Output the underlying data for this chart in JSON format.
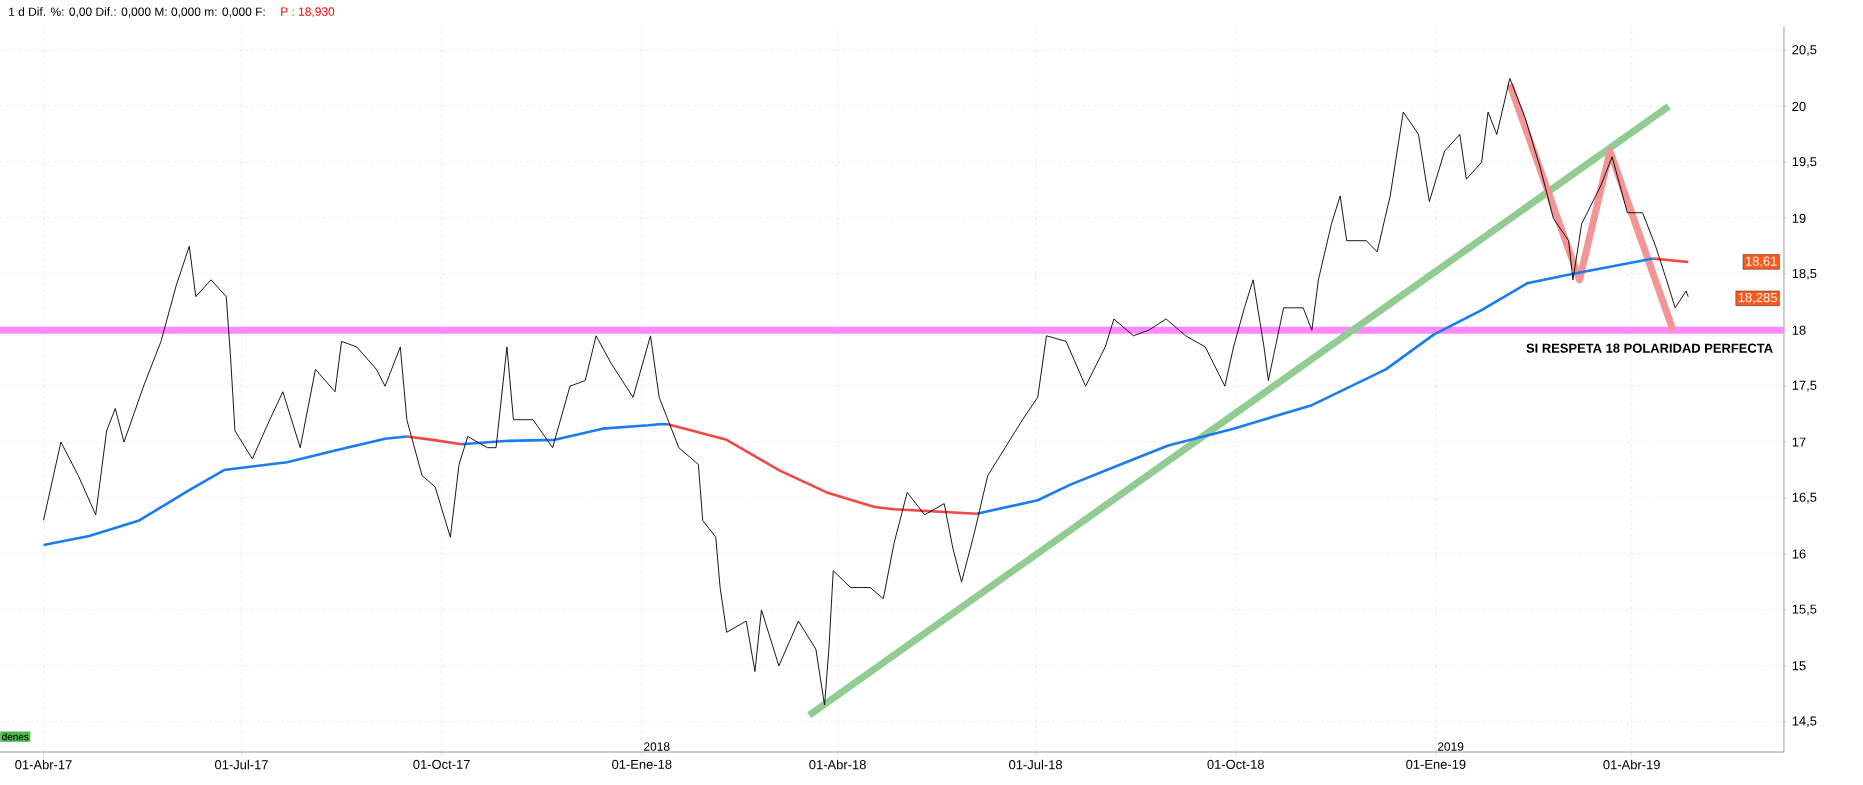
{
  "chart_data": {
    "type": "line",
    "title": "1 d Dif. %: 0,00 Dif.: 0,000 M: 0,000 m: 0,000 F:",
    "subtitle": "P : 18,930",
    "xlim": [
      "2017-03-12",
      "2019-06-10"
    ],
    "ylim": [
      14.23,
      20.71
    ],
    "xticks": [
      {
        "value": "2017-04-01",
        "label": "01-Abr-17"
      },
      {
        "value": "2017-07-01",
        "label": "01-Jul-17"
      },
      {
        "value": "2017-10-01",
        "label": "01-Oct-17"
      },
      {
        "value": "2018-01-01",
        "label": "01-Ene-18"
      },
      {
        "value": "2018-04-01",
        "label": "01-Abr-18"
      },
      {
        "value": "2018-07-01",
        "label": "01-Jul-18"
      },
      {
        "value": "2018-10-01",
        "label": "01-Oct-18"
      },
      {
        "value": "2019-01-01",
        "label": "01-Ene-19"
      },
      {
        "value": "2019-04-01",
        "label": "01-Abr-19"
      }
    ],
    "yticks": [
      {
        "value": 14.5,
        "label": "14,5"
      },
      {
        "value": 15,
        "label": "15"
      },
      {
        "value": 15.5,
        "label": "15,5"
      },
      {
        "value": 16,
        "label": "16"
      },
      {
        "value": 16.5,
        "label": "16,5"
      },
      {
        "value": 17,
        "label": "17"
      },
      {
        "value": 17.5,
        "label": "17,5"
      },
      {
        "value": 18,
        "label": "18"
      },
      {
        "value": 18.5,
        "label": "18,5"
      },
      {
        "value": 19,
        "label": "19"
      },
      {
        "value": 19.5,
        "label": "19,5"
      },
      {
        "value": 20,
        "label": "20"
      },
      {
        "value": 20.5,
        "label": "20,5"
      }
    ],
    "grid": true,
    "ref_lines": [
      {
        "axis": "y",
        "value": 18,
        "color": "#ff88ff"
      }
    ],
    "series": [
      {
        "color": "#93cc93",
        "x": [
          "2018-03-19",
          "2019-04-18"
        ],
        "values": [
          14.56,
          20.0
        ]
      },
      {
        "color": "#f49494",
        "x": [
          "2019-02-04",
          "2019-03-08",
          "2019-03-22",
          "2019-04-20"
        ],
        "values": [
          20.2,
          18.45,
          19.6,
          18.0
        ]
      },
      {
        "color": "#1a7cf0",
        "x": [
          "2017-04-01",
          "2017-04-22",
          "2017-05-15",
          "2017-06-07",
          "2017-06-23",
          "2017-07-05",
          "2017-07-22",
          "2017-08-14",
          "2017-09-05",
          "2017-09-15",
          "2017-09-27",
          "2017-10-10",
          "2017-10-30",
          "2017-11-22",
          "2017-12-14",
          "2018-01-04",
          "2018-01-09",
          "2018-01-13",
          "2018-02-09",
          "2018-03-05",
          "2018-03-27",
          "2018-04-18",
          "2018-04-27",
          "2018-06-04",
          "2018-07-02",
          "2018-07-17",
          "2018-08-09",
          "2018-08-31",
          "2018-09-30",
          "2018-11-05",
          "2018-12-09",
          "2018-12-31",
          "2019-01-22",
          "2019-02-12",
          "2019-03-04",
          "2019-04-11"
        ],
        "values": [
          16.08,
          16.16,
          16.3,
          16.57,
          16.75,
          16.78,
          16.82,
          16.93,
          17.03,
          17.05,
          null,
          16.98,
          17.01,
          17.02,
          17.12,
          17.15,
          17.16,
          17.16,
          null,
          null,
          null,
          null,
          null,
          16.36,
          16.48,
          16.62,
          16.8,
          16.97,
          17.12,
          17.33,
          17.65,
          17.96,
          18.18,
          18.42,
          18.5,
          18.64
        ]
      },
      {
        "color": "#f04848",
        "x": [
          "2017-09-15",
          "2017-09-27",
          "2017-10-10",
          "2017-12-01",
          "2018-01-13",
          "2018-02-09",
          "2018-03-05",
          "2018-03-27",
          "2018-04-18",
          "2018-04-27",
          "2018-06-04",
          "2018-12-01",
          "2019-04-11",
          "2019-04-27"
        ],
        "values": [
          17.05,
          17.02,
          16.98,
          null,
          17.16,
          17.02,
          16.75,
          16.55,
          16.42,
          16.4,
          16.36,
          null,
          18.64,
          18.61
        ]
      },
      {
        "color": "#000000",
        "x": [
          "2017-04-01",
          "2017-04-09",
          "2017-04-17",
          "2017-04-25",
          "2017-04-30",
          "2017-05-04",
          "2017-05-08",
          "2017-05-17",
          "2017-05-25",
          "2017-06-01",
          "2017-06-07",
          "2017-06-10",
          "2017-06-17",
          "2017-06-24",
          "2017-06-26",
          "2017-06-28",
          "2017-07-06",
          "2017-07-14",
          "2017-07-20",
          "2017-07-28",
          "2017-08-04",
          "2017-08-13",
          "2017-08-16",
          "2017-08-23",
          "2017-09-01",
          "2017-09-05",
          "2017-09-12",
          "2017-09-15",
          "2017-09-22",
          "2017-09-28",
          "2017-10-05",
          "2017-10-09",
          "2017-10-13",
          "2017-10-22",
          "2017-10-26",
          "2017-10-31",
          "2017-11-03",
          "2017-11-12",
          "2017-11-21",
          "2017-11-29",
          "2017-12-06",
          "2017-12-11",
          "2017-12-18",
          "2017-12-28",
          "2018-01-05",
          "2018-01-09",
          "2018-01-18",
          "2018-01-27",
          "2018-01-29",
          "2018-02-04",
          "2018-02-06",
          "2018-02-09",
          "2018-02-18",
          "2018-02-22",
          "2018-02-25",
          "2018-03-05",
          "2018-03-14",
          "2018-03-22",
          "2018-03-26",
          "2018-03-28",
          "2018-03-30",
          "2018-04-07",
          "2018-04-16",
          "2018-04-22",
          "2018-04-27",
          "2018-05-03",
          "2018-05-11",
          "2018-05-20",
          "2018-05-24",
          "2018-05-28",
          "2018-06-03",
          "2018-06-09",
          "2018-06-17",
          "2018-06-25",
          "2018-07-02",
          "2018-07-06",
          "2018-07-15",
          "2018-07-24",
          "2018-08-02",
          "2018-08-06",
          "2018-08-15",
          "2018-08-22",
          "2018-08-30",
          "2018-09-08",
          "2018-09-17",
          "2018-09-26",
          "2018-09-30",
          "2018-10-05",
          "2018-10-09",
          "2018-10-14",
          "2018-10-16",
          "2018-10-23",
          "2018-11-01",
          "2018-11-05",
          "2018-11-08",
          "2018-11-14",
          "2018-11-18",
          "2018-11-21",
          "2018-11-30",
          "2018-12-05",
          "2018-12-11",
          "2018-12-17",
          "2018-12-24",
          "2018-12-29",
          "2019-01-05",
          "2019-01-12",
          "2019-01-15",
          "2019-01-22",
          "2019-01-25",
          "2019-01-29",
          "2019-02-04",
          "2019-02-11",
          "2019-02-18",
          "2019-02-24",
          "2019-03-03",
          "2019-03-05",
          "2019-03-09",
          "2019-03-18",
          "2019-03-23",
          "2019-03-30",
          "2019-04-06",
          "2019-04-12",
          "2019-04-17",
          "2019-04-21",
          "2019-04-26",
          "2019-04-27"
        ],
        "values": [
          16.3,
          17.0,
          16.7,
          16.35,
          17.1,
          17.3,
          17.0,
          17.5,
          17.9,
          18.4,
          18.75,
          18.3,
          18.45,
          18.3,
          17.75,
          17.1,
          16.85,
          17.2,
          17.45,
          16.95,
          17.65,
          17.45,
          17.9,
          17.85,
          17.65,
          17.5,
          17.85,
          17.2,
          16.7,
          16.6,
          16.15,
          16.8,
          17.05,
          16.95,
          16.95,
          17.85,
          17.2,
          17.2,
          16.95,
          17.5,
          17.55,
          17.95,
          17.7,
          17.4,
          17.95,
          17.4,
          16.95,
          16.8,
          16.3,
          16.15,
          15.7,
          15.3,
          15.4,
          14.95,
          15.5,
          15.0,
          15.4,
          15.15,
          14.65,
          15.15,
          15.85,
          15.7,
          15.7,
          15.6,
          16.1,
          16.55,
          16.35,
          16.45,
          16.05,
          15.75,
          16.2,
          16.7,
          16.95,
          17.2,
          17.4,
          17.95,
          17.9,
          17.5,
          17.85,
          18.1,
          17.95,
          18.0,
          18.1,
          17.95,
          17.85,
          17.5,
          17.85,
          18.2,
          18.45,
          17.85,
          17.55,
          18.2,
          18.2,
          18.0,
          18.45,
          18.95,
          19.2,
          18.8,
          18.8,
          18.7,
          19.2,
          19.95,
          19.75,
          19.15,
          19.6,
          19.75,
          19.35,
          19.5,
          19.95,
          19.75,
          20.25,
          19.9,
          19.45,
          19.0,
          18.8,
          18.45,
          18.95,
          19.3,
          19.55,
          19.05,
          19.05,
          18.75,
          18.45,
          18.2,
          18.35,
          18.3
        ]
      }
    ],
    "annotations": [
      "SI RESPETA 18 POLARIDAD PERFECTA",
      "denes",
      {
        "text": "18,61",
        "y": 18.61
      },
      {
        "text": "18,285",
        "y": 18.285
      },
      "2018",
      "2019"
    ]
  }
}
